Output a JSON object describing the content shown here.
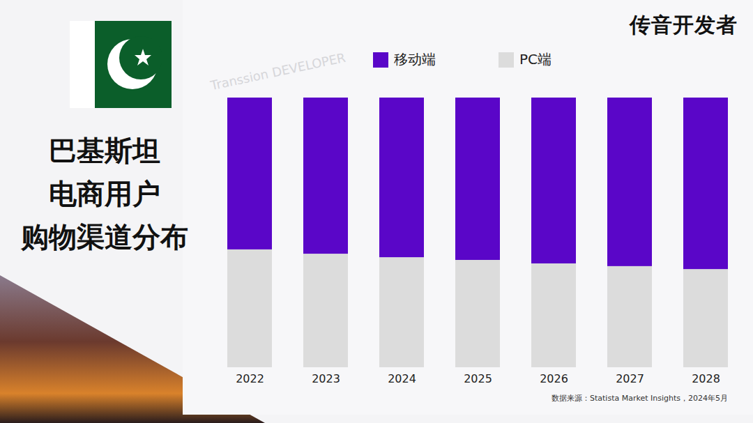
{
  "chart_data": {
    "type": "bar",
    "stacked": true,
    "title": "巴基斯坦\n电商用户\n购物渠道分布",
    "brand": "传音开发者",
    "watermark": "Transsion DEVELOPER",
    "source": "数据来源：Statista Market Insights，2024年5月",
    "categories": [
      "2022",
      "2023",
      "2024",
      "2025",
      "2026",
      "2027",
      "2028"
    ],
    "series": [
      {
        "name": "移动端",
        "color": "#5a06c8",
        "values": [
          56.3,
          57.9,
          59.2,
          60.2,
          61.5,
          62.5,
          63.6
        ]
      },
      {
        "name": "PC端",
        "color": "#dcdcdc",
        "values": [
          43.7,
          42.1,
          40.8,
          39.8,
          38.5,
          37.5,
          36.4
        ]
      }
    ],
    "ylim": [
      0,
      100
    ],
    "yticks": [],
    "tick_labels": "x",
    "grid": false,
    "legend": "top"
  }
}
